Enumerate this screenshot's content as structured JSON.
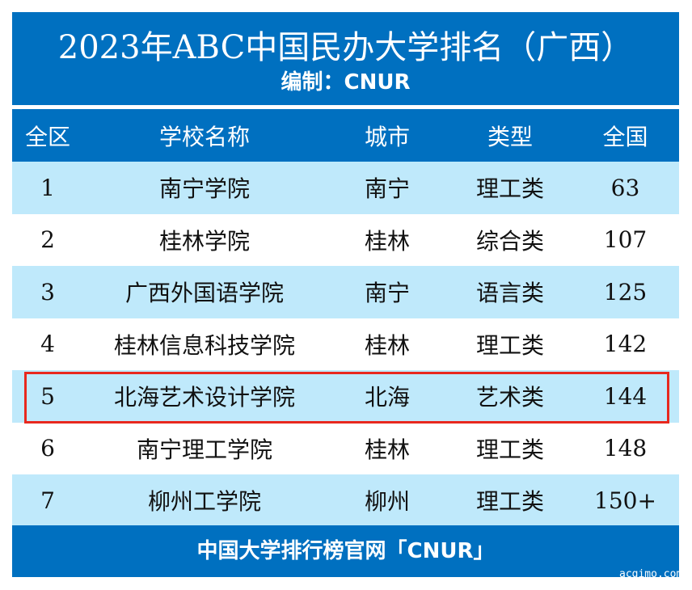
{
  "header": {
    "title": "2023年ABC中国民办大学排名（广西）",
    "subtitle": "编制：CNUR"
  },
  "columns": [
    "全区",
    "学校名称",
    "城市",
    "类型",
    "全国"
  ],
  "rows": [
    [
      "1",
      "南宁学院",
      "南宁",
      "理工类",
      "63"
    ],
    [
      "2",
      "桂林学院",
      "桂林",
      "综合类",
      "107"
    ],
    [
      "3",
      "广西外国语学院",
      "南宁",
      "语言类",
      "125"
    ],
    [
      "4",
      "桂林信息科技学院",
      "桂林",
      "理工类",
      "142"
    ],
    [
      "5",
      "北海艺术设计学院",
      "北海",
      "艺术类",
      "144"
    ],
    [
      "6",
      "南宁理工学院",
      "桂林",
      "理工类",
      "148"
    ],
    [
      "7",
      "柳州工学院",
      "柳州",
      "理工类",
      "150+"
    ]
  ],
  "highlighted_row": 5,
  "footer": "中国大学排行榜官网「CNUR」",
  "watermark": "acgimo.com",
  "colors": {
    "primary": "#0070c0",
    "row_alt": "#bfe9fb",
    "highlight": "#e8281e"
  }
}
